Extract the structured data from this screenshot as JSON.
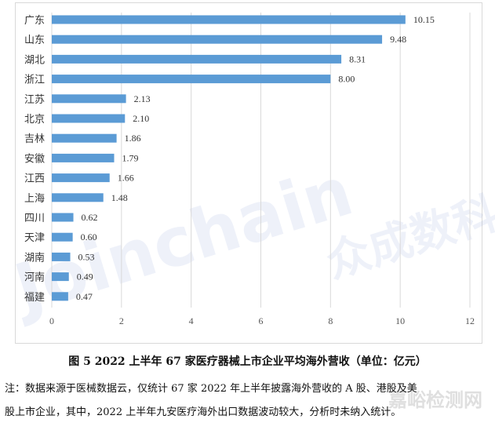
{
  "chart_data": {
    "type": "bar",
    "orientation": "horizontal",
    "categories": [
      "广东",
      "山东",
      "湖北",
      "浙江",
      "江苏",
      "北京",
      "吉林",
      "安徽",
      "江西",
      "上海",
      "四川",
      "天津",
      "湖南",
      "河南",
      "福建"
    ],
    "values": [
      10.15,
      9.48,
      8.31,
      8.0,
      2.13,
      2.1,
      1.86,
      1.79,
      1.66,
      1.48,
      0.62,
      0.6,
      0.53,
      0.49,
      0.47
    ],
    "value_labels": [
      "10.15",
      "9.48",
      "8.31",
      "8.00",
      "2.13",
      "2.10",
      "1.86",
      "1.79",
      "1.66",
      "1.48",
      "0.62",
      "0.60",
      "0.53",
      "0.49",
      "0.47"
    ],
    "xlim": [
      0,
      12
    ],
    "xticks": [
      "0",
      "2",
      "4",
      "6",
      "8",
      "10",
      "12"
    ],
    "grid": "vertical",
    "bar_color": "#5b9bd5",
    "title": "图 5   2022 上半年 67 家医疗器械上市企业平均海外营收（单位：亿元）"
  },
  "note_lines": [
    "注：数据来源于医械数据云，仅统计 67 家 2022 年上半年披露海外营收的 A 股、港股及美",
    "股上市企业，其中，2022 上半年九安医疗海外出口数据波动较大，分析时未纳入统计。"
  ],
  "watermarks": [
    "Joinchain",
    "众成数科",
    "嘉峪检测网"
  ]
}
